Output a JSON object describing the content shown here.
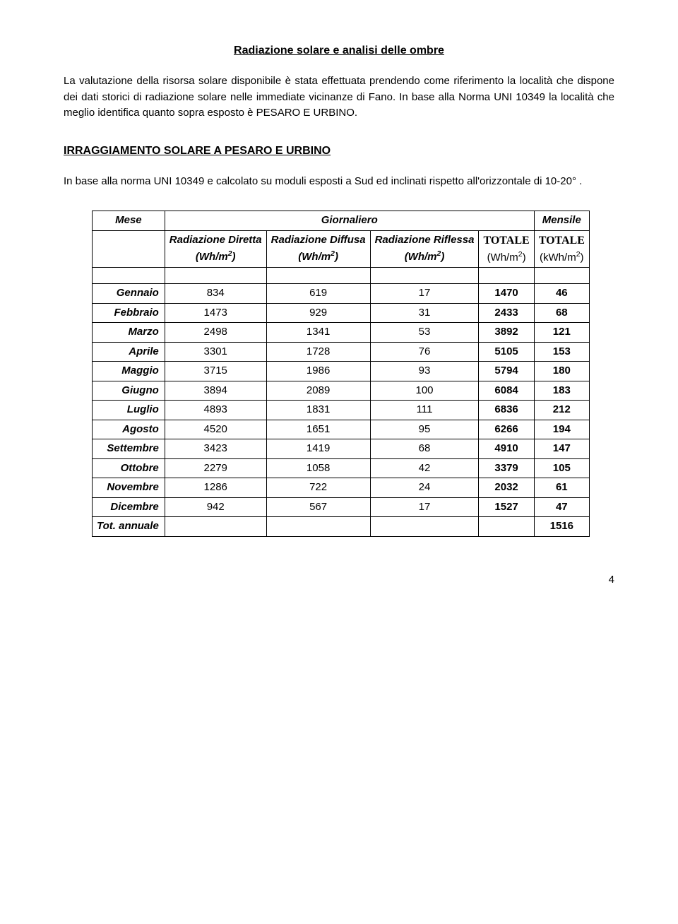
{
  "title": "Radiazione solare e analisi delle ombre",
  "para1": "La valutazione della risorsa solare disponibile è stata effettuata prendendo come riferimento la località che dispone dei dati storici di radiazione solare nelle immediate vicinanze di Fano. In base alla Norma UNI 10349 la località che meglio identifica quanto sopra esposto è PESARO E URBINO.",
  "heading2": "IRRAGGIAMENTO SOLARE A  PESARO E URBINO",
  "para2": "In base alla norma UNI 10349 e calcolato su moduli esposti a Sud ed inclinati rispetto all'orizzontale di 10-20° .",
  "table": {
    "header": {
      "mese": "Mese",
      "giornaliero": "Giornaliero",
      "mensile": "Mensile",
      "rad_diretta": "Radiazione Diretta",
      "rad_diffusa": "Radiazione Diffusa",
      "rad_riflessa": "Radiazione Riflessa",
      "totale": "TOTALE",
      "unit_wh": "(Wh/m",
      "unit_kwh": "(kWh/m",
      "unit_close": ")",
      "sup2": "2"
    },
    "rows": [
      {
        "m": "Gennaio",
        "d": "834",
        "f": "619",
        "r": "17",
        "t": "1470",
        "mt": "46"
      },
      {
        "m": "Febbraio",
        "d": "1473",
        "f": "929",
        "r": "31",
        "t": "2433",
        "mt": "68"
      },
      {
        "m": "Marzo",
        "d": "2498",
        "f": "1341",
        "r": "53",
        "t": "3892",
        "mt": "121"
      },
      {
        "m": "Aprile",
        "d": "3301",
        "f": "1728",
        "r": "76",
        "t": "5105",
        "mt": "153"
      },
      {
        "m": "Maggio",
        "d": "3715",
        "f": "1986",
        "r": "93",
        "t": "5794",
        "mt": "180"
      },
      {
        "m": "Giugno",
        "d": "3894",
        "f": "2089",
        "r": "100",
        "t": "6084",
        "mt": "183"
      },
      {
        "m": "Luglio",
        "d": "4893",
        "f": "1831",
        "r": "111",
        "t": "6836",
        "mt": "212"
      },
      {
        "m": "Agosto",
        "d": "4520",
        "f": "1651",
        "r": "95",
        "t": "6266",
        "mt": "194"
      },
      {
        "m": "Settembre",
        "d": "3423",
        "f": "1419",
        "r": "68",
        "t": "4910",
        "mt": "147"
      },
      {
        "m": "Ottobre",
        "d": "2279",
        "f": "1058",
        "r": "42",
        "t": "3379",
        "mt": "105"
      },
      {
        "m": "Novembre",
        "d": "1286",
        "f": "722",
        "r": "24",
        "t": "2032",
        "mt": "61"
      },
      {
        "m": "Dicembre",
        "d": "942",
        "f": "567",
        "r": "17",
        "t": "1527",
        "mt": "47"
      }
    ],
    "total_row": {
      "label": "Tot. annuale",
      "value": "1516"
    }
  },
  "page_number": "4"
}
